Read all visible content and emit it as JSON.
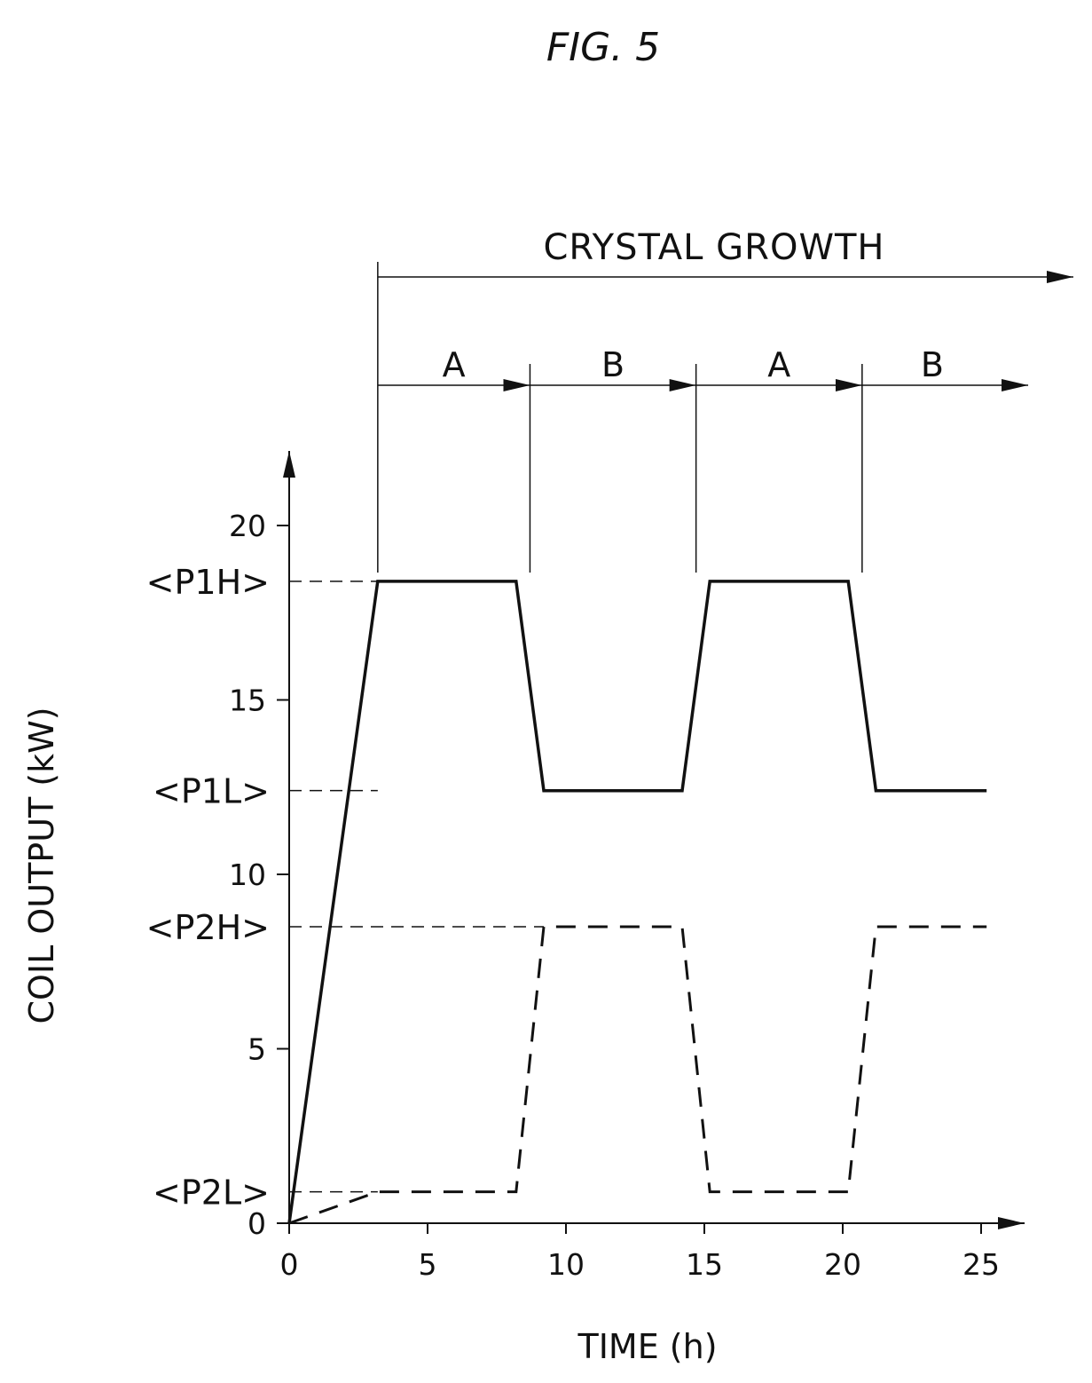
{
  "figure_label": "FIG. 5",
  "chart_data": {
    "type": "line",
    "title": "",
    "xlabel": "TIME (h)",
    "ylabel": "COIL OUTPUT (kW)",
    "xlim": [
      0,
      26
    ],
    "ylim": [
      0,
      20
    ],
    "x_ticks": [
      0,
      5,
      10,
      15,
      20,
      25
    ],
    "y_ticks": [
      0,
      5,
      10,
      15,
      20
    ],
    "grid": false,
    "level_labels": [
      {
        "label": "<P1H>",
        "y": 18.4
      },
      {
        "label": "<P1L>",
        "y": 12.4
      },
      {
        "label": "<P2H>",
        "y": 8.5
      },
      {
        "label": "<P2L>",
        "y": 0.9
      }
    ],
    "series": [
      {
        "style": "solid",
        "color": "#111111",
        "x": [
          0,
          3.2,
          8.2,
          9.2,
          14.2,
          15.2,
          20.2,
          21.2,
          25.2
        ],
        "y": [
          0,
          18.4,
          18.4,
          12.4,
          12.4,
          18.4,
          18.4,
          12.4,
          12.4
        ]
      },
      {
        "style": "dashed",
        "color": "#111111",
        "x": [
          0,
          3.2,
          8.2,
          9.2,
          14.2,
          15.2,
          20.2,
          21.2,
          25.2
        ],
        "y": [
          0,
          0.9,
          0.9,
          8.5,
          8.5,
          0.9,
          0.9,
          8.5,
          8.5
        ]
      }
    ],
    "annotations": {
      "crystal_growth": {
        "label": "CRYSTAL GROWTH",
        "start_x": 3.2
      },
      "phases": [
        {
          "label": "A",
          "start_x": 3.2,
          "end_x": 8.7
        },
        {
          "label": "B",
          "start_x": 8.7,
          "end_x": 14.7
        },
        {
          "label": "A",
          "start_x": 14.7,
          "end_x": 20.7
        },
        {
          "label": "B",
          "start_x": 20.7,
          "end_x": 26.7
        }
      ]
    }
  }
}
